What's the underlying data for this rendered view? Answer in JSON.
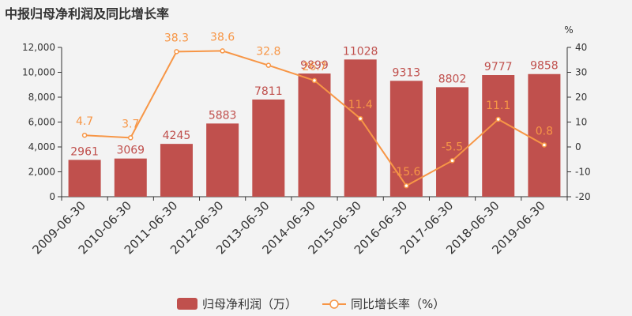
{
  "chart_data": {
    "type": "bar",
    "title": "中报归母净利润及同比增长率",
    "categories": [
      "2009-06-30",
      "2010-06-30",
      "2011-06-30",
      "2012-06-30",
      "2013-06-30",
      "2014-06-30",
      "2015-06-30",
      "2016-06-30",
      "2017-06-30",
      "2018-06-30",
      "2019-06-30"
    ],
    "series": [
      {
        "name": "归母净利润（万）",
        "type": "bar",
        "axis": "left",
        "color": "#c0504d",
        "values": [
          2961,
          3069,
          4245,
          5883,
          7811,
          9899,
          11028,
          9313,
          8802,
          9777,
          9858
        ]
      },
      {
        "name": "同比增长率（%）",
        "type": "line",
        "axis": "right",
        "color": "#f79646",
        "values": [
          4.7,
          3.7,
          38.3,
          38.6,
          32.8,
          26.7,
          11.4,
          -15.6,
          -5.5,
          11.1,
          0.8
        ]
      }
    ],
    "yleft": {
      "min": 0,
      "max": 12000,
      "ticks": [
        "0",
        "2,000",
        "4,000",
        "6,000",
        "8,000",
        "10,000",
        "12,000"
      ],
      "tick_values": [
        0,
        2000,
        4000,
        6000,
        8000,
        10000,
        12000
      ]
    },
    "yright": {
      "min": -20,
      "max": 40,
      "label": "%",
      "ticks": [
        "-20",
        "-10",
        "0",
        "10",
        "20",
        "30",
        "40"
      ],
      "tick_values": [
        -20,
        -10,
        0,
        10,
        20,
        30,
        40
      ]
    },
    "legend": {
      "position": "bottom-center"
    },
    "grid": false
  }
}
